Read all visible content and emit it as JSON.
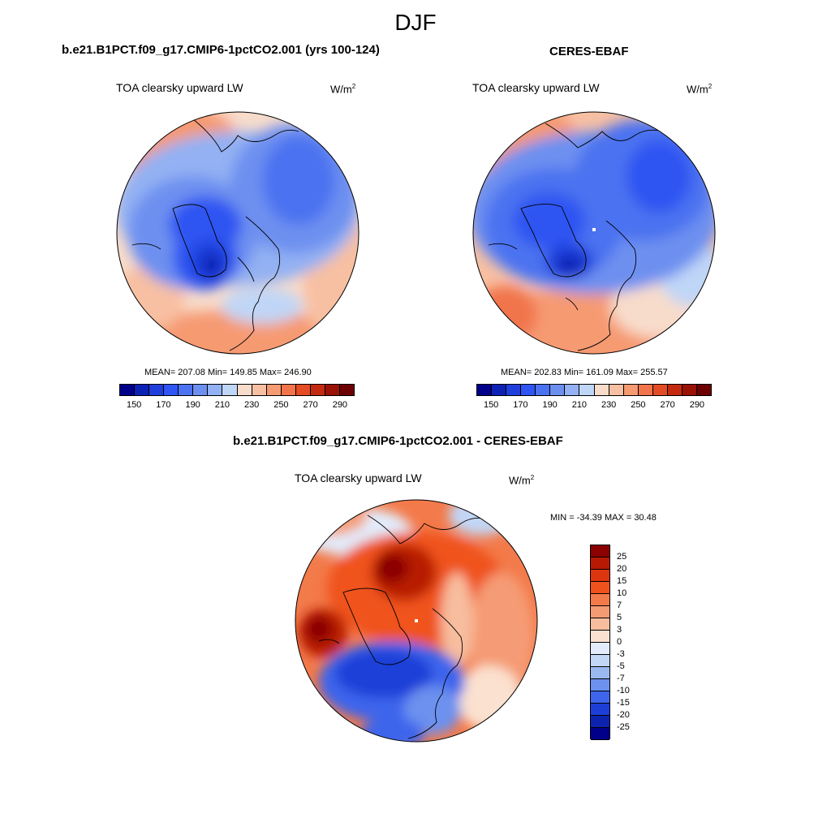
{
  "figure": {
    "title": "DJF",
    "units": "W/m",
    "units_exp": "2",
    "field": "TOA clearsky upward LW"
  },
  "panel_model": {
    "title": "b.e21.B1PCT.f09_g17.CMIP6-1pctCO2.001 (yrs 100-124)",
    "stats": "MEAN= 207.08  Min= 149.85  Max= 246.90"
  },
  "panel_obs": {
    "title": "CERES-EBAF",
    "stats": "MEAN= 202.83  Min= 161.09  Max= 255.57"
  },
  "panel_diff": {
    "title": "b.e21.B1PCT.f09_g17.CMIP6-1pctCO2.001 - CERES-EBAF",
    "stats": "MIN = -34.39 MAX =  30.48"
  },
  "chart_data": [
    {
      "type": "heatmap",
      "projection": "north polar stereographic",
      "title": "b.e21.B1PCT.f09_g17.CMIP6-1pctCO2.001 (yrs 100-124)",
      "field": "TOA clearsky upward LW",
      "units": "W/m^2",
      "mean": 207.08,
      "min": 149.85,
      "max": 246.9,
      "colorbar": {
        "levels": [
          150,
          160,
          170,
          180,
          190,
          200,
          210,
          220,
          230,
          240,
          250,
          260,
          270,
          280,
          290
        ],
        "tick_labels": [
          "150",
          "170",
          "190",
          "210",
          "230",
          "250",
          "270",
          "290"
        ],
        "colors": [
          "#00008b",
          "#0c22b4",
          "#1f3fdc",
          "#2f55f2",
          "#4b72f0",
          "#6d90f0",
          "#93b1f3",
          "#c0d6f7",
          "#f8dccb",
          "#f8c0a2",
          "#f69a72",
          "#f1744b",
          "#e44c25",
          "#c42a0f",
          "#9a1105",
          "#6d0000"
        ]
      }
    },
    {
      "type": "heatmap",
      "projection": "north polar stereographic",
      "title": "CERES-EBAF",
      "field": "TOA clearsky upward LW",
      "units": "W/m^2",
      "mean": 202.83,
      "min": 161.09,
      "max": 255.57,
      "colorbar": {
        "levels": [
          150,
          160,
          170,
          180,
          190,
          200,
          210,
          220,
          230,
          240,
          250,
          260,
          270,
          280,
          290
        ],
        "tick_labels": [
          "150",
          "170",
          "190",
          "210",
          "230",
          "250",
          "270",
          "290"
        ],
        "colors": [
          "#00008b",
          "#0c22b4",
          "#1f3fdc",
          "#2f55f2",
          "#4b72f0",
          "#6d90f0",
          "#93b1f3",
          "#c0d6f7",
          "#f8dccb",
          "#f8c0a2",
          "#f69a72",
          "#f1744b",
          "#e44c25",
          "#c42a0f",
          "#9a1105",
          "#6d0000"
        ]
      }
    },
    {
      "type": "heatmap",
      "projection": "north polar stereographic",
      "title": "b.e21.B1PCT.f09_g17.CMIP6-1pctCO2.001 - CERES-EBAF",
      "field": "TOA clearsky upward LW",
      "units": "W/m^2",
      "min": -34.39,
      "max": 30.48,
      "colorbar": {
        "levels": [
          25,
          20,
          15,
          10,
          7,
          5,
          3,
          0,
          -3,
          -5,
          -7,
          -10,
          -15,
          -20,
          -25
        ],
        "tick_labels": [
          "25",
          "20",
          "15",
          "10",
          "7",
          "5",
          "3",
          "0",
          "-3",
          "-5",
          "-7",
          "-10",
          "-15",
          "-20",
          "-25"
        ],
        "colors": [
          "#8b0000",
          "#b71a04",
          "#dc3510",
          "#f0521e",
          "#f37a4a",
          "#f59b74",
          "#f7bd9e",
          "#fbe1cf",
          "#e2ecfb",
          "#c2d6f5",
          "#9bb9f1",
          "#6c91ef",
          "#3e65ec",
          "#1d3fd8",
          "#0d23b0",
          "#00008b"
        ]
      }
    }
  ]
}
